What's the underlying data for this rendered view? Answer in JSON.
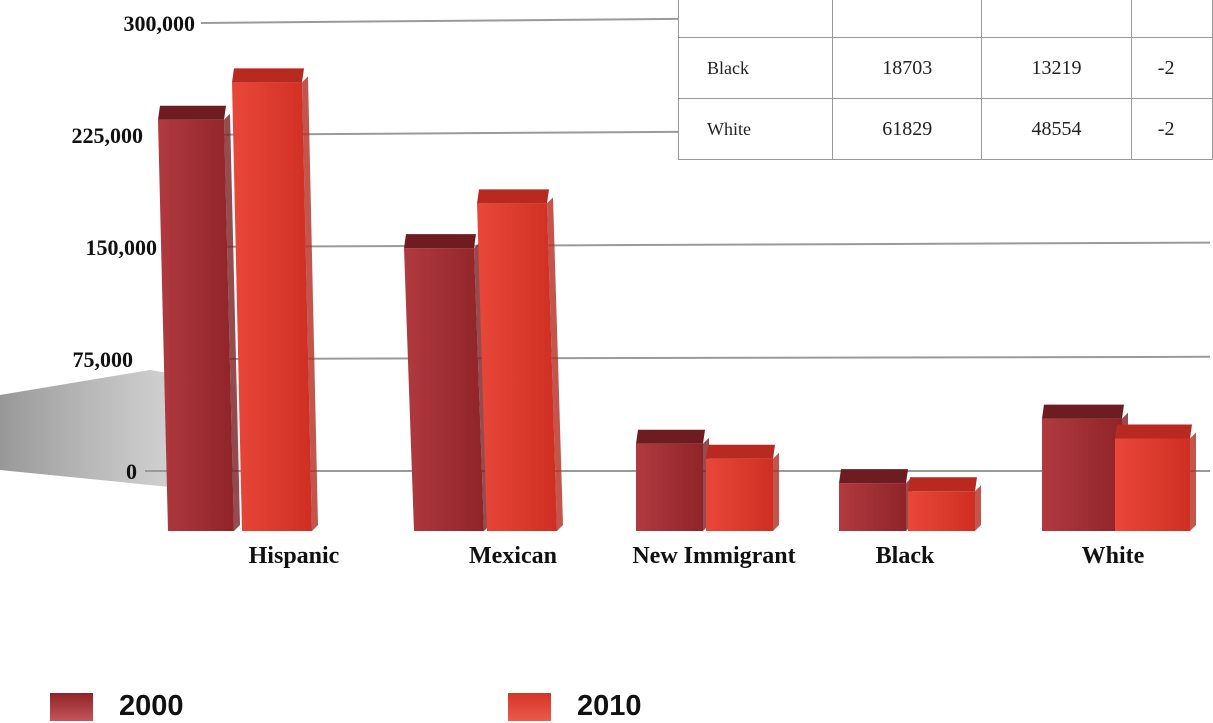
{
  "chart_data": {
    "type": "bar",
    "categories": [
      "Hispanic",
      "Mexican",
      "New Immigrant",
      "Black",
      "White"
    ],
    "series": [
      {
        "name": "2000",
        "values": [
          262000,
          176000,
          45000,
          18703,
          61829
        ]
      },
      {
        "name": "2010",
        "values": [
          287000,
          206000,
          35000,
          13219,
          48554
        ]
      }
    ],
    "ylim": [
      -35000,
      300000
    ],
    "yticks": [
      0,
      75000,
      150000,
      225000,
      300000
    ],
    "ytick_labels": [
      "0",
      "75,000",
      "150,000",
      "225,000",
      "300,000"
    ],
    "grid": true,
    "legend_position": "bottom",
    "colors": {
      "2000": "#9e2a2e",
      "2010": "#df3a2c"
    }
  },
  "table": {
    "rows": [
      {
        "label": "",
        "v2000": "",
        "v2010": "",
        "change": ""
      },
      {
        "label": "Black",
        "v2000": "18703",
        "v2010": "13219",
        "change": "-2"
      },
      {
        "label": "White",
        "v2000": "61829",
        "v2010": "48554",
        "change": "-2"
      }
    ]
  },
  "legend": [
    {
      "label": "2000",
      "color": "#9e2a2e"
    },
    {
      "label": "2010",
      "color": "#df3a2c"
    }
  ]
}
